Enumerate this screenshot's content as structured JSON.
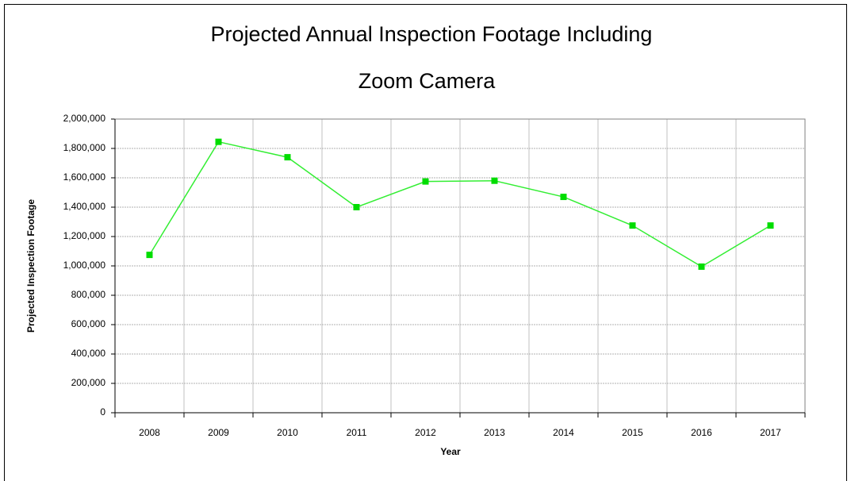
{
  "chart_data": {
    "type": "line",
    "title": [
      "Projected Annual Inspection Footage Including",
      "Zoom Camera"
    ],
    "x_label": "Year",
    "y_label": "Projected Inspection Footage",
    "categories": [
      "2008",
      "2009",
      "2010",
      "2011",
      "2012",
      "2013",
      "2014",
      "2015",
      "2016",
      "2017"
    ],
    "series": [
      {
        "name": "Projected Inspection Footage",
        "color": "#33ee33",
        "marker_color": "#00dd00",
        "values": [
          1075000,
          1845000,
          1740000,
          1400000,
          1575000,
          1580000,
          1470000,
          1275000,
          995000,
          1275000
        ]
      }
    ],
    "ylim": [
      0,
      2000000
    ],
    "yticks": [
      0,
      {
        "value": 200000,
        "label": "200,000"
      },
      {
        "value": 400000,
        "label": "400,000"
      },
      {
        "value": 600000,
        "label": "600,000"
      },
      {
        "value": 800000,
        "label": "800,000"
      },
      {
        "value": 1000000,
        "label": "1,000,000"
      },
      {
        "value": 1200000,
        "label": "1,200,000"
      },
      {
        "value": 1400000,
        "label": "1,400,000"
      },
      {
        "value": 1600000,
        "label": "1,600,000"
      },
      {
        "value": 1800000,
        "label": "1,800,000"
      },
      {
        "value": 2000000,
        "label": "2,000,000"
      }
    ],
    "grid": true
  }
}
